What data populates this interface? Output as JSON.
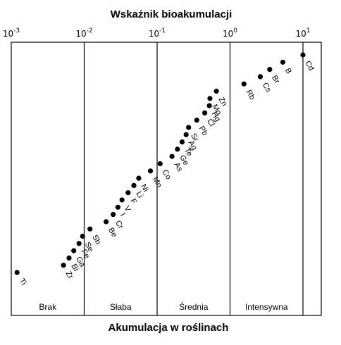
{
  "chart_data": {
    "type": "scatter",
    "title": "Wskaźnik bioakumulacji",
    "xlabel": "Akumulacja w roślinach",
    "x_scale": "log",
    "xlim": [
      0.001,
      20
    ],
    "top_ticks": [
      {
        "base": "10",
        "exp": "-3",
        "value": 0.001
      },
      {
        "base": "10",
        "exp": "-2",
        "value": 0.01
      },
      {
        "base": "10",
        "exp": "-1",
        "value": 0.1
      },
      {
        "base": "10",
        "exp": "0",
        "value": 1
      },
      {
        "base": "10",
        "exp": "1",
        "value": 10
      }
    ],
    "categories": [
      {
        "label": "Brak",
        "from": 0.001,
        "to": 0.01
      },
      {
        "label": "Słaba",
        "from": 0.01,
        "to": 0.1
      },
      {
        "label": "Średnia",
        "from": 0.1,
        "to": 1
      },
      {
        "label": "Intensywna",
        "from": 1,
        "to": 10
      }
    ],
    "elements": [
      {
        "label": "Cd",
        "value": 10,
        "rank": 0
      },
      {
        "label": "B",
        "value": 5.3,
        "rank": 1
      },
      {
        "label": "Br",
        "value": 3.5,
        "rank": 2
      },
      {
        "label": "Cs",
        "value": 2.6,
        "rank": 3
      },
      {
        "label": "Rb",
        "value": 1.55,
        "rank": 4
      },
      {
        "label": "Zn",
        "value": 0.65,
        "rank": 5
      },
      {
        "label": "Mo",
        "value": 0.53,
        "rank": 6
      },
      {
        "label": "Hg",
        "value": 0.52,
        "rank": 7
      },
      {
        "label": "Cl",
        "value": 0.45,
        "rank": 8
      },
      {
        "label": "Pb",
        "value": 0.35,
        "rank": 9
      },
      {
        "label": "Sr",
        "value": 0.27,
        "rank": 10
      },
      {
        "label": "Ag",
        "value": 0.25,
        "rank": 11
      },
      {
        "label": "Te",
        "value": 0.22,
        "rank": 12
      },
      {
        "label": "Ge",
        "value": 0.19,
        "rank": 13
      },
      {
        "label": "As",
        "value": 0.16,
        "rank": 14
      },
      {
        "label": "Co",
        "value": 0.11,
        "rank": 15
      },
      {
        "label": "Mn",
        "value": 0.081,
        "rank": 16
      },
      {
        "label": "Ni",
        "value": 0.056,
        "rank": 17
      },
      {
        "label": "Li",
        "value": 0.048,
        "rank": 18
      },
      {
        "label": "F",
        "value": 0.04,
        "rank": 19
      },
      {
        "label": "V",
        "value": 0.033,
        "rank": 20
      },
      {
        "label": "I",
        "value": 0.029,
        "rank": 21
      },
      {
        "label": "Cr",
        "value": 0.025,
        "rank": 22
      },
      {
        "label": "Be",
        "value": 0.02,
        "rank": 23
      },
      {
        "label": "Sb",
        "value": 0.012,
        "rank": 24
      },
      {
        "label": "Se",
        "value": 0.0095,
        "rank": 25
      },
      {
        "label": "Fe",
        "value": 0.0085,
        "rank": 26
      },
      {
        "label": "Ga",
        "value": 0.0072,
        "rank": 27
      },
      {
        "label": "Bi",
        "value": 0.0062,
        "rank": 28
      },
      {
        "label": "Zr",
        "value": 0.0052,
        "rank": 29
      },
      {
        "label": "Ti",
        "value": 0.0012,
        "rank": 30
      }
    ],
    "grid": false
  }
}
